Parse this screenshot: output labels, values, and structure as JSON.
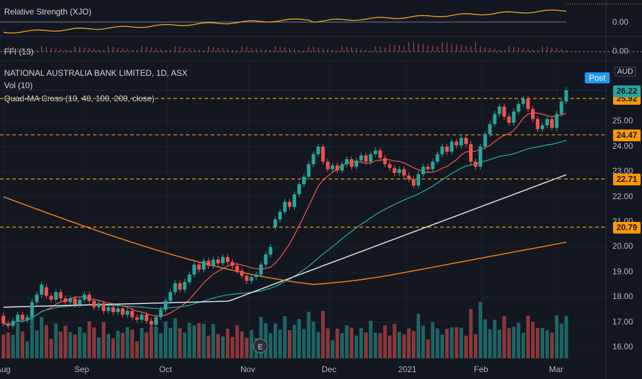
{
  "panes": {
    "rs": {
      "title": "Relative Strength (XJO)",
      "value_label": "0.00"
    },
    "ffi": {
      "title": "FFI (13)",
      "value_label": "0.00"
    },
    "main": {
      "title": "NATIONAL AUSTRALIA BANK LIMITED, 1D, ASX",
      "vol_label": "Vol (10)",
      "qma_label": "Quad-MA Cross (10, 40, 100, 200, close)",
      "post_tag": "Post",
      "currency": "AUD"
    }
  },
  "colors": {
    "up": "#26a69a",
    "down": "#ef5350",
    "ma10": "#ef5350",
    "ma40": "#26a69a",
    "ma100": "#e0e3eb",
    "ma200": "#f57f17",
    "hline": "#ff9800",
    "rs_line": "#f5a623",
    "current": "#26a69a"
  },
  "chart_data": {
    "type": "candlestick",
    "price_axis": [
      "16.00",
      "17.00",
      "18.00",
      "19.00",
      "20.00",
      "21.00",
      "22.00",
      "23.00",
      "24.00",
      "25.00"
    ],
    "date_axis": [
      "Aug",
      "Sep",
      "Oct",
      "Nov",
      "Dec",
      "2021",
      "Feb",
      "Mar"
    ],
    "horizontal_levels": [
      {
        "price": 25.92,
        "label": "25.92"
      },
      {
        "price": 24.47,
        "label": "24.47"
      },
      {
        "price": 22.71,
        "label": "22.71"
      },
      {
        "price": 20.79,
        "label": "20.79"
      }
    ],
    "current_price": {
      "price": 26.22,
      "label": "26.22"
    },
    "candles": [
      {
        "o": 17.25,
        "c": 16.95
      },
      {
        "o": 16.95,
        "c": 16.85
      },
      {
        "o": 16.85,
        "c": 17.05
      },
      {
        "o": 17.05,
        "c": 17.3
      },
      {
        "o": 17.3,
        "c": 17.1
      },
      {
        "o": 17.1,
        "c": 17.2
      },
      {
        "o": 17.2,
        "c": 17.8
      },
      {
        "o": 17.8,
        "c": 18.1
      },
      {
        "o": 18.1,
        "c": 18.5
      },
      {
        "o": 18.4,
        "c": 18.05
      },
      {
        "o": 18.05,
        "c": 17.9
      },
      {
        "o": 17.9,
        "c": 18.2
      },
      {
        "o": 18.2,
        "c": 17.95
      },
      {
        "o": 17.95,
        "c": 17.8
      },
      {
        "o": 17.8,
        "c": 17.95
      },
      {
        "o": 17.95,
        "c": 17.7
      },
      {
        "o": 17.7,
        "c": 17.9
      },
      {
        "o": 17.9,
        "c": 18.1
      },
      {
        "o": 18.1,
        "c": 17.85
      },
      {
        "o": 17.85,
        "c": 17.6
      },
      {
        "o": 17.6,
        "c": 17.75
      },
      {
        "o": 17.75,
        "c": 17.45
      },
      {
        "o": 17.45,
        "c": 17.6
      },
      {
        "o": 17.6,
        "c": 17.4
      },
      {
        "o": 17.4,
        "c": 17.55
      },
      {
        "o": 17.55,
        "c": 17.3
      },
      {
        "o": 17.3,
        "c": 17.45
      },
      {
        "o": 17.45,
        "c": 17.2
      },
      {
        "o": 17.2,
        "c": 17.1
      },
      {
        "o": 17.1,
        "c": 17.3
      },
      {
        "o": 17.3,
        "c": 17.05
      },
      {
        "o": 17.05,
        "c": 16.9
      },
      {
        "o": 16.9,
        "c": 17.2
      },
      {
        "o": 17.2,
        "c": 17.5
      },
      {
        "o": 17.5,
        "c": 17.85
      },
      {
        "o": 17.85,
        "c": 18.2
      },
      {
        "o": 18.2,
        "c": 18.55
      },
      {
        "o": 18.55,
        "c": 18.3
      },
      {
        "o": 18.3,
        "c": 18.6
      },
      {
        "o": 18.6,
        "c": 18.9
      },
      {
        "o": 18.9,
        "c": 19.3
      },
      {
        "o": 19.3,
        "c": 19.1
      },
      {
        "o": 19.1,
        "c": 19.45
      },
      {
        "o": 19.45,
        "c": 19.25
      },
      {
        "o": 19.25,
        "c": 19.5
      },
      {
        "o": 19.5,
        "c": 19.35
      },
      {
        "o": 19.35,
        "c": 19.6
      },
      {
        "o": 19.6,
        "c": 19.4
      },
      {
        "o": 19.4,
        "c": 19.25
      },
      {
        "o": 19.25,
        "c": 19.05
      },
      {
        "o": 19.05,
        "c": 18.85
      },
      {
        "o": 18.85,
        "c": 18.65
      },
      {
        "o": 18.65,
        "c": 18.8
      },
      {
        "o": 18.8,
        "c": 18.9
      },
      {
        "o": 18.9,
        "c": 19.3
      },
      {
        "o": 19.3,
        "c": 19.7
      },
      {
        "o": 19.7,
        "c": 20.0
      },
      {
        "o": 20.8,
        "c": 21.1
      },
      {
        "o": 21.1,
        "c": 21.4
      },
      {
        "o": 21.4,
        "c": 21.8
      },
      {
        "o": 21.8,
        "c": 21.6
      },
      {
        "o": 21.6,
        "c": 22.1
      },
      {
        "o": 22.1,
        "c": 22.5
      },
      {
        "o": 22.5,
        "c": 22.8
      },
      {
        "o": 22.8,
        "c": 23.3
      },
      {
        "o": 23.3,
        "c": 23.7
      },
      {
        "o": 23.7,
        "c": 24.0
      },
      {
        "o": 24.0,
        "c": 23.4
      },
      {
        "o": 23.4,
        "c": 23.1
      },
      {
        "o": 23.1,
        "c": 23.25
      },
      {
        "o": 23.25,
        "c": 23.05
      },
      {
        "o": 23.05,
        "c": 23.3
      },
      {
        "o": 23.3,
        "c": 23.5
      },
      {
        "o": 23.5,
        "c": 23.2
      },
      {
        "o": 23.2,
        "c": 23.45
      },
      {
        "o": 23.45,
        "c": 23.65
      },
      {
        "o": 23.65,
        "c": 23.4
      },
      {
        "o": 23.4,
        "c": 23.7
      },
      {
        "o": 23.7,
        "c": 23.85
      },
      {
        "o": 23.85,
        "c": 23.55
      },
      {
        "o": 23.55,
        "c": 23.3
      },
      {
        "o": 23.3,
        "c": 23.15
      },
      {
        "o": 23.15,
        "c": 22.95
      },
      {
        "o": 22.95,
        "c": 23.1
      },
      {
        "o": 23.1,
        "c": 22.85
      },
      {
        "o": 22.85,
        "c": 22.7
      },
      {
        "o": 22.7,
        "c": 22.45
      },
      {
        "o": 22.45,
        "c": 22.9
      },
      {
        "o": 22.9,
        "c": 23.2
      },
      {
        "o": 23.2,
        "c": 23.1
      },
      {
        "o": 23.1,
        "c": 23.4
      },
      {
        "o": 23.4,
        "c": 23.7
      },
      {
        "o": 23.7,
        "c": 24.0
      },
      {
        "o": 24.0,
        "c": 23.8
      },
      {
        "o": 23.8,
        "c": 24.2
      },
      {
        "o": 24.2,
        "c": 24.05
      },
      {
        "o": 24.05,
        "c": 24.35
      },
      {
        "o": 24.35,
        "c": 24.1
      },
      {
        "o": 24.1,
        "c": 23.4
      },
      {
        "o": 23.4,
        "c": 23.2
      },
      {
        "o": 23.2,
        "c": 24.0
      },
      {
        "o": 24.0,
        "c": 24.5
      },
      {
        "o": 24.5,
        "c": 24.9
      },
      {
        "o": 24.9,
        "c": 25.3
      },
      {
        "o": 25.3,
        "c": 25.6
      },
      {
        "o": 25.6,
        "c": 25.2
      },
      {
        "o": 25.2,
        "c": 24.95
      },
      {
        "o": 24.95,
        "c": 25.4
      },
      {
        "o": 25.4,
        "c": 25.7
      },
      {
        "o": 25.7,
        "c": 25.9
      },
      {
        "o": 25.9,
        "c": 25.5
      },
      {
        "o": 25.5,
        "c": 25.1
      },
      {
        "o": 25.1,
        "c": 24.7
      },
      {
        "o": 24.7,
        "c": 24.85
      },
      {
        "o": 24.85,
        "c": 25.1
      },
      {
        "o": 25.1,
        "c": 24.75
      },
      {
        "o": 24.75,
        "c": 25.3
      },
      {
        "o": 25.3,
        "c": 25.8
      },
      {
        "o": 25.8,
        "c": 26.25
      }
    ]
  }
}
